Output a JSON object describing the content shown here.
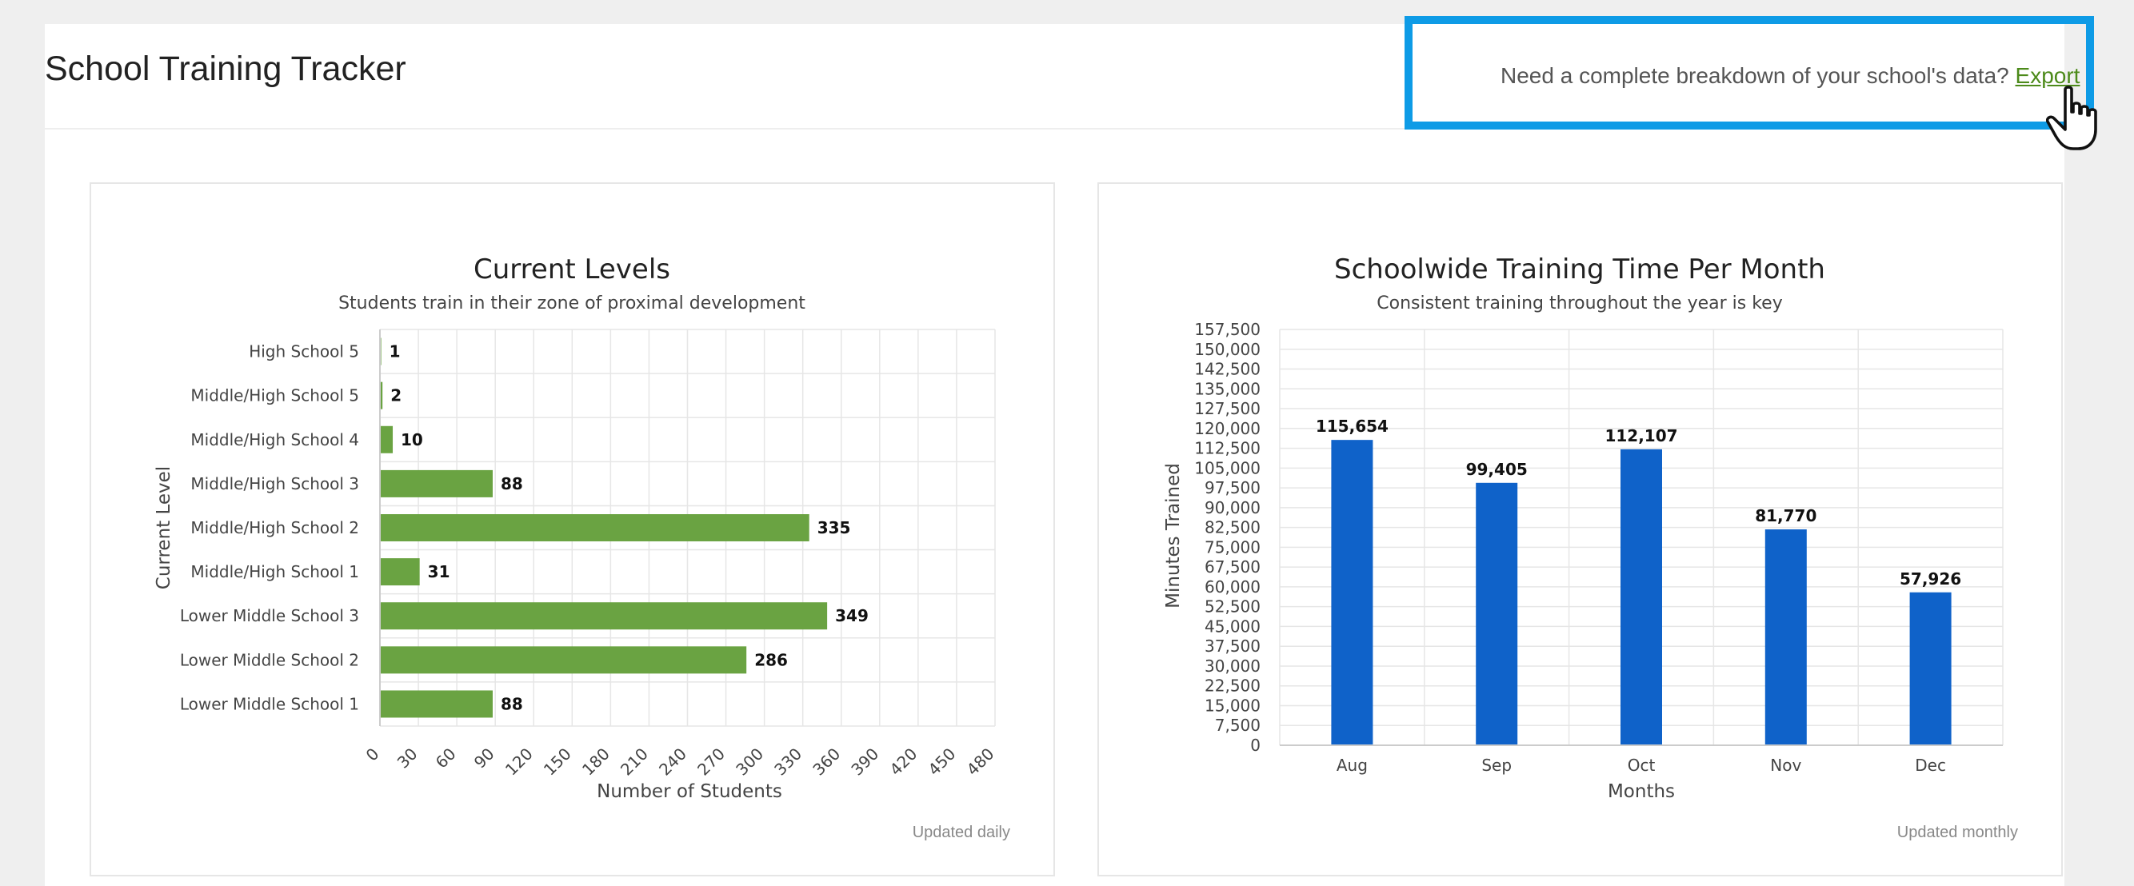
{
  "header": {
    "title": "School Training Tracker",
    "export_prompt": "Need a complete breakdown of your school's data?",
    "export_link": "Export",
    "highlight_color": "#0e9be6"
  },
  "cards": {
    "levels": {
      "footnote": "Updated daily"
    },
    "monthly": {
      "footnote": "Updated monthly"
    }
  },
  "chart_data": [
    {
      "type": "bar",
      "orientation": "horizontal",
      "title": "Current Levels",
      "subtitle": "Students train in their zone of proximal development",
      "xlabel": "Number of Students",
      "ylabel": "Current Level",
      "categories": [
        "High School 5",
        "Middle/High School 5",
        "Middle/High School 4",
        "Middle/High School 3",
        "Middle/High School 2",
        "Middle/High School 1",
        "Lower Middle School 3",
        "Lower Middle School 2",
        "Lower Middle School 1"
      ],
      "values": [
        1,
        2,
        10,
        88,
        335,
        31,
        349,
        286,
        88
      ],
      "xlim": [
        0,
        480
      ],
      "xticks": [
        "0",
        "30",
        "60",
        "90",
        "120",
        "150",
        "180",
        "210",
        "240",
        "270",
        "300",
        "330",
        "360",
        "390",
        "420",
        "450",
        "480"
      ],
      "data_labels": [
        "1",
        "2",
        "10",
        "88",
        "335",
        "31",
        "349",
        "286",
        "88"
      ],
      "color": "#6aa342",
      "grid": true
    },
    {
      "type": "bar",
      "title": "Schoolwide Training Time Per Month",
      "subtitle": "Consistent training throughout the year is key",
      "xlabel": "Months",
      "ylabel": "Minutes Trained",
      "categories": [
        "Aug",
        "Sep",
        "Oct",
        "Nov",
        "Dec"
      ],
      "values": [
        115654,
        99405,
        112107,
        81770,
        57926
      ],
      "ylim": [
        0,
        157500
      ],
      "yticks": [
        "0",
        "7,500",
        "15,000",
        "22,500",
        "30,000",
        "37,500",
        "45,000",
        "52,500",
        "60,000",
        "67,500",
        "75,000",
        "82,500",
        "90,000",
        "97,500",
        "105,000",
        "112,500",
        "120,000",
        "127,500",
        "135,000",
        "142,500",
        "150,000",
        "157,500"
      ],
      "data_labels": [
        "115,654",
        "99,405",
        "112,107",
        "81,770",
        "57,926"
      ],
      "color": "#0f62c9",
      "grid": true
    }
  ]
}
